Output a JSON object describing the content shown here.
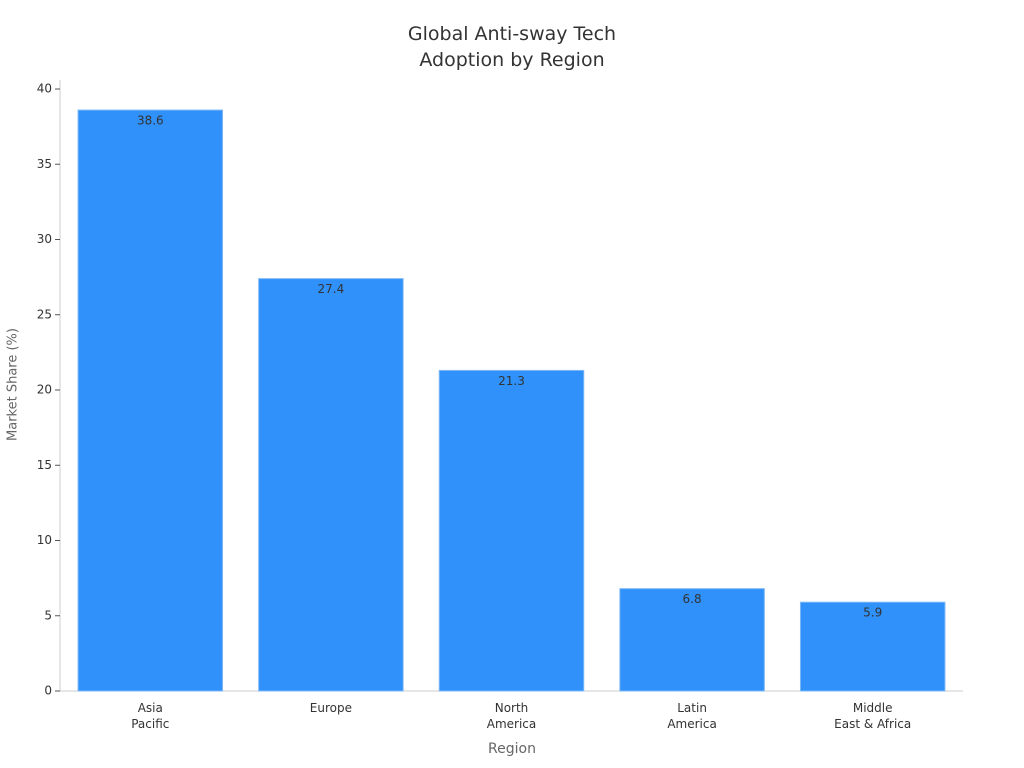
{
  "chart_data": {
    "type": "bar",
    "title": "Global Anti-sway Tech\nAdoption by Region",
    "x_label": "Region",
    "y_label": "Market Share (%)",
    "categories": [
      "Asia\nPacific",
      "Europe",
      "North\nAmerica",
      "Latin\nAmerica",
      "Middle\nEast & Africa"
    ],
    "values": [
      38.6,
      27.4,
      21.3,
      6.8,
      5.9
    ],
    "color": "#2f91f9",
    "ylim": [
      0,
      40
    ],
    "yticks": [
      0,
      5,
      10,
      15,
      20,
      25,
      30,
      35,
      40
    ],
    "grid": false
  }
}
